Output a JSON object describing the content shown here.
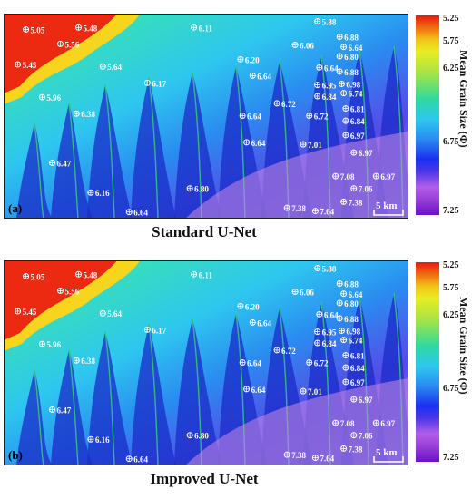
{
  "chart_data": [
    {
      "type": "heatmap",
      "panel_label": "(a)",
      "caption": "Standard U-Net",
      "scale_bar": "5 km",
      "colorbar": {
        "title": "Mean Grain Size (Φ)",
        "ticks": [
          "5.25",
          "5.75",
          "6.25",
          "6.75",
          "7.25"
        ],
        "range": [
          5.25,
          7.25
        ]
      },
      "samples": [
        {
          "label": "5.05",
          "x": 0.055,
          "y": 0.06
        },
        {
          "label": "5.48",
          "x": 0.185,
          "y": 0.05
        },
        {
          "label": "5.56",
          "x": 0.14,
          "y": 0.13
        },
        {
          "label": "5.45",
          "x": 0.035,
          "y": 0.23
        },
        {
          "label": "6.11",
          "x": 0.47,
          "y": 0.05
        },
        {
          "label": "5.88",
          "x": 0.775,
          "y": 0.02
        },
        {
          "label": "5.64",
          "x": 0.245,
          "y": 0.24
        },
        {
          "label": "6.17",
          "x": 0.355,
          "y": 0.32
        },
        {
          "label": "5.96",
          "x": 0.095,
          "y": 0.39
        },
        {
          "label": "6.20",
          "x": 0.585,
          "y": 0.205
        },
        {
          "label": "6.06",
          "x": 0.72,
          "y": 0.135
        },
        {
          "label": "6.88",
          "x": 0.83,
          "y": 0.095
        },
        {
          "label": "6.64",
          "x": 0.84,
          "y": 0.145
        },
        {
          "label": "6.80",
          "x": 0.83,
          "y": 0.19
        },
        {
          "label": "6.64",
          "x": 0.78,
          "y": 0.245
        },
        {
          "label": "6.88",
          "x": 0.83,
          "y": 0.265
        },
        {
          "label": "6.95",
          "x": 0.775,
          "y": 0.33
        },
        {
          "label": "6.98",
          "x": 0.835,
          "y": 0.325
        },
        {
          "label": "6.84",
          "x": 0.775,
          "y": 0.385
        },
        {
          "label": "6.74",
          "x": 0.84,
          "y": 0.37
        },
        {
          "label": "6.64",
          "x": 0.615,
          "y": 0.285
        },
        {
          "label": "6.72",
          "x": 0.675,
          "y": 0.42
        },
        {
          "label": "6.72",
          "x": 0.755,
          "y": 0.48
        },
        {
          "label": "6.81",
          "x": 0.845,
          "y": 0.445
        },
        {
          "label": "6.84",
          "x": 0.845,
          "y": 0.505
        },
        {
          "label": "6.38",
          "x": 0.18,
          "y": 0.47
        },
        {
          "label": "6.64",
          "x": 0.59,
          "y": 0.48
        },
        {
          "label": "6.64",
          "x": 0.6,
          "y": 0.61
        },
        {
          "label": "6.97",
          "x": 0.845,
          "y": 0.575
        },
        {
          "label": "7.01",
          "x": 0.74,
          "y": 0.62
        },
        {
          "label": "6.97",
          "x": 0.865,
          "y": 0.66
        },
        {
          "label": "6.47",
          "x": 0.12,
          "y": 0.71
        },
        {
          "label": "6.16",
          "x": 0.215,
          "y": 0.855
        },
        {
          "label": "6.80",
          "x": 0.46,
          "y": 0.835
        },
        {
          "label": "7.08",
          "x": 0.82,
          "y": 0.775
        },
        {
          "label": "6.97",
          "x": 0.92,
          "y": 0.775
        },
        {
          "label": "7.06",
          "x": 0.865,
          "y": 0.835
        },
        {
          "label": "7.38",
          "x": 0.84,
          "y": 0.9
        },
        {
          "label": "7.38",
          "x": 0.7,
          "y": 0.93
        },
        {
          "label": "7.64",
          "x": 0.77,
          "y": 0.945
        },
        {
          "label": "6.64",
          "x": 0.31,
          "y": 0.95
        }
      ]
    },
    {
      "type": "heatmap",
      "panel_label": "(b)",
      "caption": "Improved U-Net",
      "scale_bar": "5 km",
      "colorbar": {
        "title": "Mean Grain Size (Φ)",
        "ticks": [
          "5.25",
          "5.75",
          "6.25",
          "6.75",
          "7.25"
        ],
        "range": [
          5.25,
          7.25
        ]
      },
      "samples": [
        {
          "label": "5.05",
          "x": 0.055,
          "y": 0.06
        },
        {
          "label": "5.48",
          "x": 0.185,
          "y": 0.05
        },
        {
          "label": "5.56",
          "x": 0.14,
          "y": 0.13
        },
        {
          "label": "5.45",
          "x": 0.035,
          "y": 0.23
        },
        {
          "label": "6.11",
          "x": 0.47,
          "y": 0.05
        },
        {
          "label": "5.88",
          "x": 0.775,
          "y": 0.02
        },
        {
          "label": "5.64",
          "x": 0.245,
          "y": 0.24
        },
        {
          "label": "6.17",
          "x": 0.355,
          "y": 0.32
        },
        {
          "label": "5.96",
          "x": 0.095,
          "y": 0.39
        },
        {
          "label": "6.20",
          "x": 0.585,
          "y": 0.205
        },
        {
          "label": "6.06",
          "x": 0.72,
          "y": 0.135
        },
        {
          "label": "6.88",
          "x": 0.83,
          "y": 0.095
        },
        {
          "label": "6.64",
          "x": 0.84,
          "y": 0.145
        },
        {
          "label": "6.80",
          "x": 0.83,
          "y": 0.19
        },
        {
          "label": "6.64",
          "x": 0.78,
          "y": 0.245
        },
        {
          "label": "6.88",
          "x": 0.83,
          "y": 0.265
        },
        {
          "label": "6.95",
          "x": 0.775,
          "y": 0.33
        },
        {
          "label": "6.98",
          "x": 0.835,
          "y": 0.325
        },
        {
          "label": "6.84",
          "x": 0.775,
          "y": 0.385
        },
        {
          "label": "6.74",
          "x": 0.84,
          "y": 0.37
        },
        {
          "label": "6.64",
          "x": 0.615,
          "y": 0.285
        },
        {
          "label": "6.72",
          "x": 0.675,
          "y": 0.42
        },
        {
          "label": "6.72",
          "x": 0.755,
          "y": 0.48
        },
        {
          "label": "6.81",
          "x": 0.845,
          "y": 0.445
        },
        {
          "label": "6.84",
          "x": 0.845,
          "y": 0.505
        },
        {
          "label": "6.38",
          "x": 0.18,
          "y": 0.47
        },
        {
          "label": "6.64",
          "x": 0.59,
          "y": 0.48
        },
        {
          "label": "6.64",
          "x": 0.6,
          "y": 0.61
        },
        {
          "label": "6.97",
          "x": 0.845,
          "y": 0.575
        },
        {
          "label": "7.01",
          "x": 0.74,
          "y": 0.62
        },
        {
          "label": "6.97",
          "x": 0.865,
          "y": 0.66
        },
        {
          "label": "6.47",
          "x": 0.12,
          "y": 0.71
        },
        {
          "label": "6.16",
          "x": 0.215,
          "y": 0.855
        },
        {
          "label": "6.80",
          "x": 0.46,
          "y": 0.835
        },
        {
          "label": "7.08",
          "x": 0.82,
          "y": 0.775
        },
        {
          "label": "6.97",
          "x": 0.92,
          "y": 0.775
        },
        {
          "label": "7.06",
          "x": 0.865,
          "y": 0.835
        },
        {
          "label": "7.38",
          "x": 0.84,
          "y": 0.9
        },
        {
          "label": "7.38",
          "x": 0.7,
          "y": 0.93
        },
        {
          "label": "7.64",
          "x": 0.77,
          "y": 0.945
        },
        {
          "label": "6.64",
          "x": 0.31,
          "y": 0.95
        }
      ]
    }
  ]
}
